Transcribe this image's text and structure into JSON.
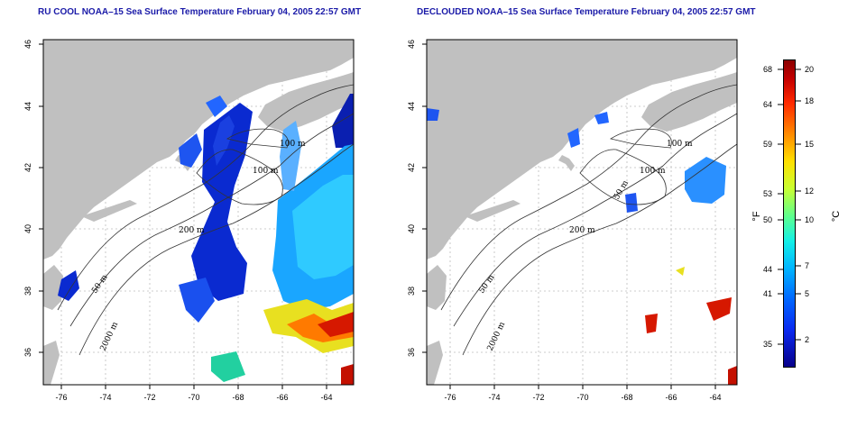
{
  "titles": {
    "left": "RU COOL NOAA–15 Sea Surface Temperature February 04, 2005 22:57 GMT",
    "right": "DECLOUDED NOAA–15 Sea Surface Temperature February 04, 2005 22:57 GMT"
  },
  "axes": {
    "lon_ticks": [
      "-76",
      "-74",
      "-72",
      "-70",
      "-68",
      "-66",
      "-64"
    ],
    "lat_ticks": [
      "36",
      "38",
      "40",
      "42",
      "44",
      "46"
    ]
  },
  "contour_labels": {
    "left": [
      "100 m",
      "100 m",
      "200 m",
      "50 m",
      "2000 m"
    ],
    "right": [
      "100 m",
      "100 m",
      "50 m",
      "200 m",
      "50 m",
      "2000 m"
    ]
  },
  "colorbar": {
    "fahrenheit_ticks": [
      "68",
      "64",
      "59",
      "53",
      "50",
      "44",
      "41",
      "35"
    ],
    "celsius_ticks": [
      "20",
      "18",
      "15",
      "12",
      "10",
      "7",
      "5",
      "2"
    ],
    "fahrenheit_unit": "°F",
    "celsius_unit": "°C"
  },
  "colors": {
    "land": "#c0c0c0",
    "title": "#1a1aa8",
    "cold": "#0a1fd0",
    "warm": "#d61800"
  }
}
